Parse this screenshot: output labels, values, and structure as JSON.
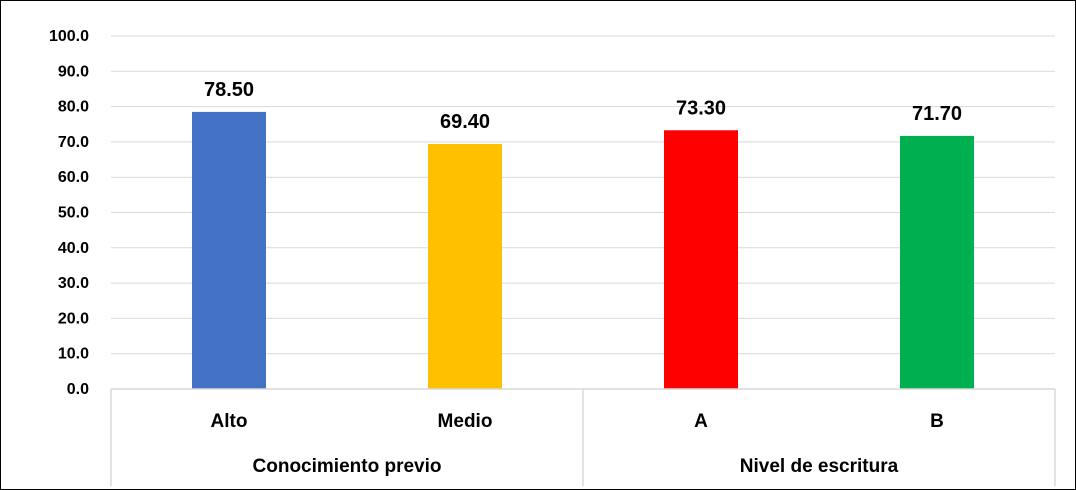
{
  "chart_data": {
    "type": "bar",
    "categories": [
      "Alto",
      "Medio",
      "A",
      "B"
    ],
    "groups": [
      {
        "label": "Conocimiento previo",
        "categories": [
          "Alto",
          "Medio"
        ]
      },
      {
        "label": "Nivel de escritura",
        "categories": [
          "A",
          "B"
        ]
      }
    ],
    "values": [
      78.5,
      69.4,
      73.3,
      71.7
    ],
    "data_labels": [
      "78.50",
      "69.40",
      "73.30",
      "71.70"
    ],
    "bar_colors": [
      "#4472C4",
      "#FFC000",
      "#FF0000",
      "#00B050"
    ],
    "ylim": [
      0,
      100
    ],
    "yticks": [
      "0.0",
      "10.0",
      "20.0",
      "30.0",
      "40.0",
      "50.0",
      "60.0",
      "70.0",
      "80.0",
      "90.0",
      "100.0"
    ],
    "grid": true,
    "title": "",
    "xlabel": "",
    "ylabel": ""
  }
}
